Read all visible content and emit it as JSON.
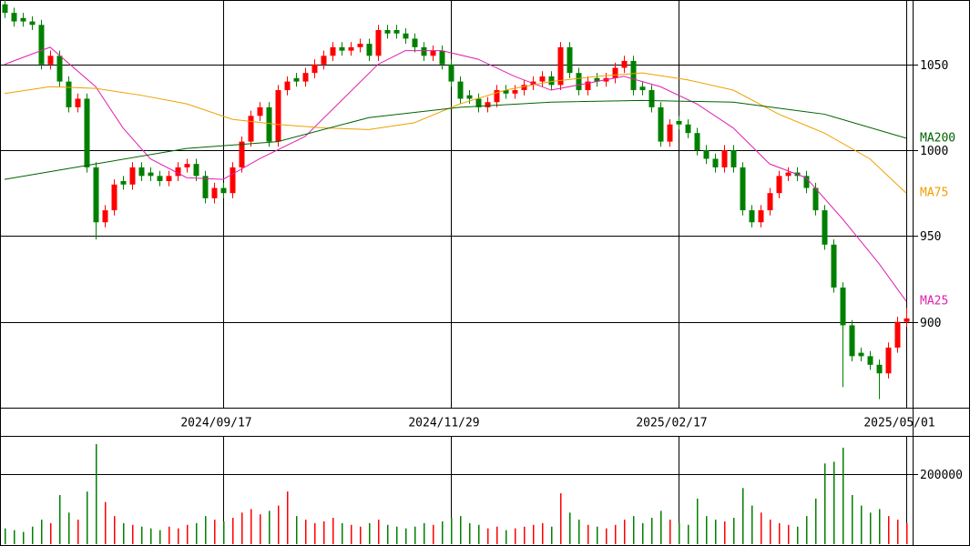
{
  "chart_data": {
    "type": "candlestick",
    "categories": [
      null,
      null,
      null,
      null,
      null,
      null,
      null,
      null,
      null,
      null,
      null,
      null,
      null,
      null,
      null,
      null,
      null,
      null,
      null,
      null,
      null,
      null,
      null,
      null,
      "2024/09/17",
      null,
      null,
      null,
      null,
      null,
      null,
      null,
      null,
      null,
      null,
      null,
      null,
      null,
      null,
      null,
      null,
      null,
      null,
      null,
      null,
      null,
      null,
      null,
      null,
      "2024/11/29",
      null,
      null,
      null,
      null,
      null,
      null,
      null,
      null,
      null,
      null,
      null,
      null,
      null,
      null,
      null,
      null,
      null,
      null,
      null,
      null,
      null,
      null,
      null,
      null,
      "2025/02/17",
      null,
      null,
      null,
      null,
      null,
      null,
      null,
      null,
      null,
      null,
      null,
      null,
      null,
      null,
      null,
      null,
      null,
      null,
      null,
      null,
      null,
      null,
      null,
      null,
      "2025/05/01"
    ],
    "ohlc": [
      [
        1085,
        1088,
        1077,
        1080
      ],
      [
        1080,
        1083,
        1072,
        1075
      ],
      [
        1077,
        1080,
        1072,
        1075
      ],
      [
        1075,
        1078,
        1070,
        1073
      ],
      [
        1073,
        1076,
        1047,
        1050
      ],
      [
        1050,
        1058,
        1047,
        1055
      ],
      [
        1055,
        1058,
        1037,
        1040
      ],
      [
        1040,
        1043,
        1022,
        1025
      ],
      [
        1025,
        1033,
        1022,
        1030
      ],
      [
        1030,
        1033,
        987,
        990
      ],
      [
        990,
        993,
        948,
        958
      ],
      [
        958,
        968,
        955,
        965
      ],
      [
        965,
        983,
        962,
        980
      ],
      [
        982,
        985,
        977,
        980
      ],
      [
        980,
        993,
        977,
        990
      ],
      [
        990,
        993,
        982,
        985
      ],
      [
        987,
        990,
        982,
        985
      ],
      [
        985,
        988,
        979,
        982
      ],
      [
        982,
        988,
        979,
        985
      ],
      [
        985,
        993,
        982,
        990
      ],
      [
        990,
        995,
        987,
        992
      ],
      [
        992,
        995,
        982,
        985
      ],
      [
        985,
        988,
        969,
        972
      ],
      [
        972,
        981,
        969,
        978
      ],
      [
        978,
        981,
        972,
        975
      ],
      [
        975,
        993,
        972,
        990
      ],
      [
        990,
        1008,
        987,
        1005
      ],
      [
        1005,
        1023,
        1002,
        1020
      ],
      [
        1020,
        1028,
        1017,
        1025
      ],
      [
        1025,
        1028,
        1002,
        1005
      ],
      [
        1005,
        1038,
        1002,
        1035
      ],
      [
        1035,
        1043,
        1032,
        1040
      ],
      [
        1042,
        1045,
        1037,
        1040
      ],
      [
        1040,
        1048,
        1037,
        1045
      ],
      [
        1045,
        1053,
        1042,
        1050
      ],
      [
        1050,
        1058,
        1047,
        1055
      ],
      [
        1055,
        1063,
        1052,
        1060
      ],
      [
        1060,
        1063,
        1055,
        1058
      ],
      [
        1058,
        1063,
        1055,
        1060
      ],
      [
        1060,
        1065,
        1057,
        1062
      ],
      [
        1062,
        1065,
        1052,
        1055
      ],
      [
        1055,
        1073,
        1052,
        1070
      ],
      [
        1070,
        1073,
        1065,
        1068
      ],
      [
        1070,
        1073,
        1065,
        1068
      ],
      [
        1068,
        1071,
        1062,
        1065
      ],
      [
        1065,
        1068,
        1057,
        1060
      ],
      [
        1060,
        1063,
        1052,
        1055
      ],
      [
        1055,
        1061,
        1052,
        1058
      ],
      [
        1058,
        1061,
        1047,
        1050
      ],
      [
        1050,
        1053,
        1037,
        1040
      ],
      [
        1040,
        1043,
        1027,
        1030
      ],
      [
        1032,
        1035,
        1027,
        1030
      ],
      [
        1030,
        1033,
        1022,
        1025
      ],
      [
        1025,
        1031,
        1022,
        1028
      ],
      [
        1028,
        1038,
        1025,
        1035
      ],
      [
        1035,
        1038,
        1030,
        1033
      ],
      [
        1033,
        1038,
        1030,
        1035
      ],
      [
        1035,
        1041,
        1032,
        1038
      ],
      [
        1038,
        1043,
        1035,
        1040
      ],
      [
        1040,
        1046,
        1037,
        1043
      ],
      [
        1043,
        1046,
        1035,
        1038
      ],
      [
        1038,
        1063,
        1035,
        1060
      ],
      [
        1060,
        1063,
        1042,
        1045
      ],
      [
        1045,
        1048,
        1032,
        1035
      ],
      [
        1035,
        1043,
        1032,
        1040
      ],
      [
        1042,
        1045,
        1037,
        1040
      ],
      [
        1040,
        1045,
        1037,
        1042
      ],
      [
        1042,
        1051,
        1039,
        1048
      ],
      [
        1048,
        1055,
        1045,
        1052
      ],
      [
        1052,
        1055,
        1032,
        1035
      ],
      [
        1037,
        1040,
        1032,
        1035
      ],
      [
        1035,
        1038,
        1022,
        1025
      ],
      [
        1025,
        1028,
        1002,
        1005
      ],
      [
        1005,
        1018,
        1002,
        1015
      ],
      [
        1017,
        1020,
        1012,
        1015
      ],
      [
        1015,
        1018,
        1007,
        1010
      ],
      [
        1010,
        1013,
        997,
        1000
      ],
      [
        1000,
        1003,
        992,
        995
      ],
      [
        995,
        998,
        987,
        990
      ],
      [
        990,
        1003,
        987,
        1000
      ],
      [
        1000,
        1003,
        987,
        990
      ],
      [
        990,
        993,
        962,
        965
      ],
      [
        965,
        968,
        955,
        958
      ],
      [
        958,
        968,
        955,
        965
      ],
      [
        965,
        978,
        962,
        975
      ],
      [
        975,
        988,
        972,
        985
      ],
      [
        985,
        990,
        982,
        987
      ],
      [
        987,
        990,
        982,
        985
      ],
      [
        985,
        988,
        975,
        978
      ],
      [
        978,
        981,
        962,
        965
      ],
      [
        965,
        968,
        942,
        945
      ],
      [
        945,
        948,
        917,
        920
      ],
      [
        920,
        923,
        862,
        898
      ],
      [
        898,
        901,
        877,
        880
      ],
      [
        882,
        885,
        877,
        880
      ],
      [
        880,
        883,
        872,
        875
      ],
      [
        875,
        878,
        855,
        870
      ],
      [
        870,
        888,
        867,
        885
      ],
      [
        885,
        903,
        882,
        900
      ],
      [
        900,
        908,
        897,
        902
      ]
    ],
    "up_color": "#ff0000",
    "down_color": "#008000",
    "ylim": [
      850,
      1087.5
    ],
    "yticks": [
      900,
      950,
      1000,
      1050
    ],
    "series": [
      {
        "name": "MA25",
        "color": "#e020b0",
        "x": [
          0,
          5,
          10,
          13,
          16,
          20,
          24,
          28,
          33,
          37,
          41,
          44,
          48,
          52,
          56,
          60,
          64,
          68,
          72,
          76,
          80,
          84,
          88,
          92,
          96,
          99
        ],
        "values": [
          1050,
          1060,
          1037,
          1013,
          995,
          984,
          983,
          995,
          1008,
          1029,
          1050,
          1058,
          1058,
          1053,
          1043,
          1035,
          1039,
          1043,
          1037,
          1027,
          1013,
          992,
          984,
          960,
          934,
          912
        ]
      },
      {
        "name": "MA75",
        "color": "#f0a000",
        "x": [
          0,
          5,
          10,
          15,
          20,
          25,
          30,
          35,
          40,
          45,
          50,
          55,
          60,
          65,
          70,
          75,
          80,
          85,
          90,
          95,
          99
        ],
        "values": [
          1033,
          1037,
          1036,
          1032,
          1027,
          1018,
          1015,
          1013,
          1012,
          1016,
          1027,
          1035,
          1040,
          1043,
          1045,
          1041,
          1035,
          1021,
          1010,
          995,
          975
        ]
      },
      {
        "name": "MA200",
        "color": "#006400",
        "x": [
          0,
          10,
          20,
          30,
          40,
          50,
          60,
          70,
          80,
          90,
          99
        ],
        "values": [
          983,
          992,
          1001,
          1005,
          1019,
          1025,
          1028,
          1029,
          1028,
          1021,
          1007
        ]
      }
    ],
    "volume": {
      "values": [
        45000,
        40000,
        35000,
        50000,
        70000,
        60000,
        140000,
        90000,
        70000,
        150000,
        285000,
        120000,
        80000,
        60000,
        55000,
        50000,
        45000,
        40000,
        50000,
        45000,
        55000,
        60000,
        80000,
        70000,
        65000,
        75000,
        90000,
        100000,
        85000,
        95000,
        110000,
        150000,
        80000,
        70000,
        60000,
        65000,
        75000,
        60000,
        55000,
        50000,
        60000,
        70000,
        55000,
        50000,
        45000,
        50000,
        60000,
        55000,
        65000,
        75000,
        80000,
        60000,
        55000,
        45000,
        50000,
        40000,
        45000,
        50000,
        55000,
        60000,
        50000,
        145000,
        90000,
        70000,
        55000,
        50000,
        45000,
        55000,
        70000,
        80000,
        60000,
        75000,
        95000,
        70000,
        60000,
        55000,
        130000,
        80000,
        70000,
        65000,
        75000,
        160000,
        110000,
        90000,
        70000,
        60000,
        55000,
        50000,
        80000,
        130000,
        230000,
        235000,
        275000,
        140000,
        110000,
        90000,
        100000,
        80000,
        70000,
        60000
      ],
      "ylim": [
        0,
        306000
      ],
      "yticks": [
        200000
      ]
    }
  }
}
